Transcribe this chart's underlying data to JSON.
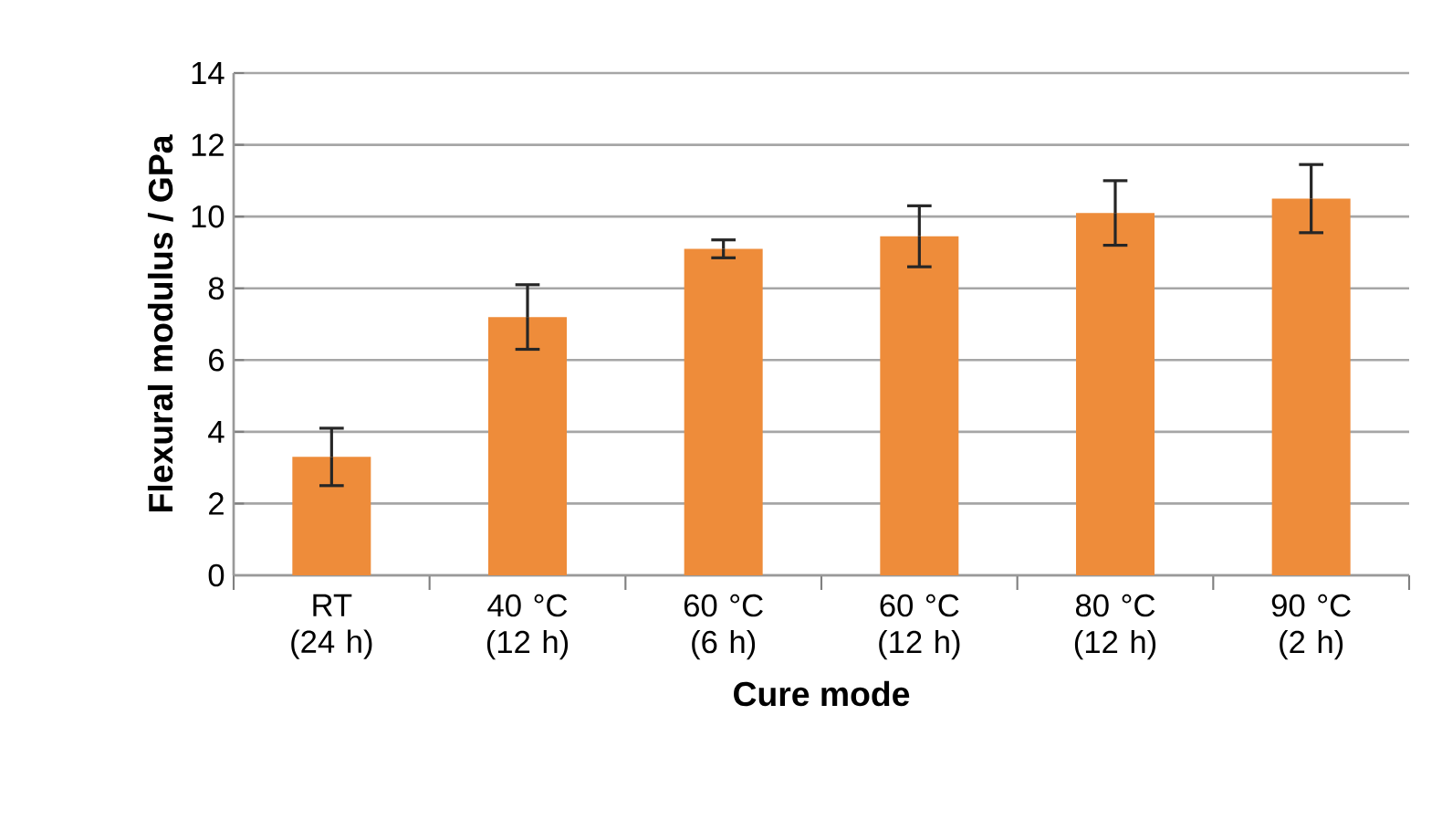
{
  "chart_data": {
    "type": "bar",
    "xlabel": "Cure mode",
    "ylabel": "Flexural modulus / GPa",
    "categories": [
      "RT (24 h)",
      "40 °C (12 h)",
      "60 °C (6 h)",
      "60 °C (12 h)",
      "80 °C (12 h)",
      "90 °C (2 h)"
    ],
    "values": [
      3.3,
      7.2,
      9.1,
      9.45,
      10.1,
      10.5
    ],
    "errors": [
      0.8,
      0.9,
      0.25,
      0.85,
      0.9,
      0.95
    ],
    "color": "#ee8c3a",
    "ylim": [
      0,
      14
    ],
    "yticks": [
      0,
      2,
      4,
      6,
      8,
      10,
      12,
      14
    ],
    "grid": "y"
  }
}
